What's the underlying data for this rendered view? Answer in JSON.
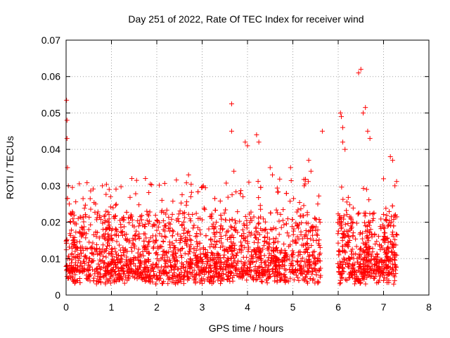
{
  "chart_data": {
    "type": "scatter",
    "title": "Day 251 of 2022, Rate Of TEC Index for receiver wind",
    "xlabel": "GPS time / hours",
    "ylabel": "ROTI / TECUs",
    "xlim": [
      0,
      8
    ],
    "ylim": [
      0,
      0.07
    ],
    "xticks": [
      "0",
      "1",
      "2",
      "3",
      "4",
      "5",
      "6",
      "7",
      "8"
    ],
    "yticks": [
      "0",
      "0.01",
      "0.02",
      "0.03",
      "0.04",
      "0.05",
      "0.06",
      "0.07"
    ],
    "grid": true,
    "marker": "+",
    "color": "#ff0000",
    "series": [
      {
        "name": "ROTI",
        "x": [
          0.01,
          0.02,
          0.02,
          0.03,
          0.05,
          0.07,
          0.1,
          0.15,
          0.2,
          0.35,
          0.5,
          0.65,
          0.8,
          0.95,
          0.98,
          1.45,
          1.75,
          1.78,
          2.7,
          2.75,
          3.65,
          3.65,
          3.7,
          3.9,
          3.95,
          4.0,
          4.2,
          4.25,
          4.5,
          4.55,
          4.95,
          5.35,
          5.4,
          5.55,
          5.6,
          5.65,
          6.05,
          6.07,
          6.1,
          6.1,
          6.15,
          6.45,
          6.5,
          6.55,
          6.6,
          6.65,
          6.7,
          7.15,
          7.2,
          7.25
        ],
        "y": [
          0.0535,
          0.048,
          0.043,
          0.035,
          0.03,
          0.025,
          0.02,
          0.015,
          0.012,
          0.008,
          0.018,
          0.025,
          0.03,
          0.029,
          0.027,
          0.032,
          0.032,
          0.023,
          0.033,
          0.027,
          0.0525,
          0.045,
          0.034,
          0.027,
          0.042,
          0.041,
          0.044,
          0.042,
          0.035,
          0.033,
          0.035,
          0.037,
          0.034,
          0.025,
          0.02,
          0.045,
          0.05,
          0.049,
          0.046,
          0.042,
          0.04,
          0.061,
          0.062,
          0.05,
          0.0515,
          0.045,
          0.043,
          0.038,
          0.037,
          0.03
        ]
      }
    ]
  }
}
